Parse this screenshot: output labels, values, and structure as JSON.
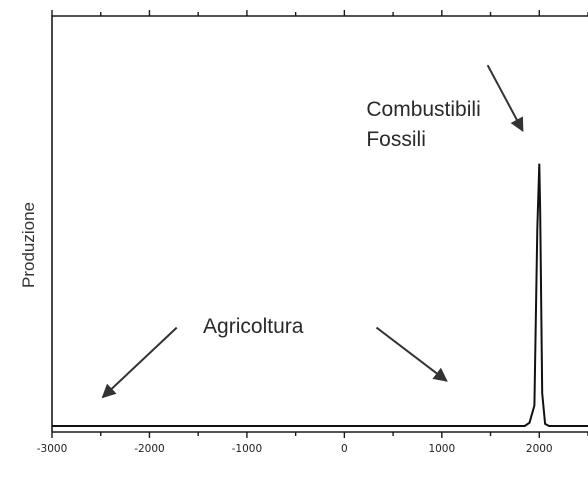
{
  "chart_data": {
    "type": "line",
    "title": "",
    "xlabel": "",
    "ylabel": "Produzione",
    "xlim": [
      -3000,
      2500
    ],
    "ylim": [
      0,
      1
    ],
    "xticks": [
      -3000,
      -2000,
      -1000,
      0,
      1000,
      2000
    ],
    "xtick_labels": [
      "-3000",
      "-2000",
      "-1000",
      "0",
      "1000",
      "2000"
    ],
    "grid": false,
    "series": [
      {
        "x": [
          -3000,
          1850,
          1900,
          1950,
          1980,
          2000,
          2010,
          2030,
          2060,
          2100,
          2500
        ],
        "y": [
          0.0,
          0.0,
          0.008,
          0.05,
          0.48,
          0.64,
          0.52,
          0.08,
          0.005,
          0.0,
          0.0
        ]
      }
    ],
    "annotations": [
      {
        "label_lines": [
          "Combustibili",
          "Fossili"
        ],
        "arrow_from": [
          1470,
          0.88
        ],
        "arrow_to": [
          1830,
          0.72
        ]
      },
      {
        "label_lines": [
          "Agricoltura"
        ],
        "arrow_from": [
          -1720,
          0.24
        ],
        "arrow_to": [
          -2480,
          0.07
        ]
      },
      {
        "label_lines": [],
        "arrow_from": [
          330,
          0.24
        ],
        "arrow_to": [
          1050,
          0.11
        ]
      }
    ]
  }
}
